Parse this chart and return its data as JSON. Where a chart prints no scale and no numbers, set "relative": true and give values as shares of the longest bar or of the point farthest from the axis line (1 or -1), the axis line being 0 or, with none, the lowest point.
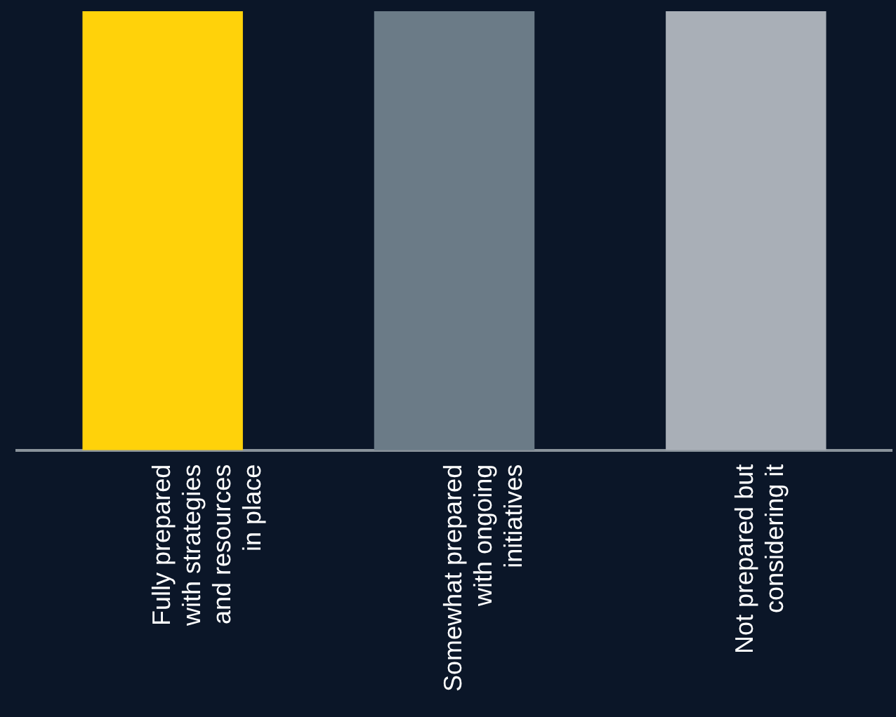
{
  "chart_data": {
    "type": "bar",
    "relative": true,
    "categories": [
      "Fully prepared with strategies and resources in place",
      "Somewhat prepared with ongoing initiatives",
      "Not prepared but considering it"
    ],
    "values": [
      1,
      1,
      1
    ],
    "colors": [
      "#ffd20a",
      "#6b7b87",
      "#a9afb7"
    ]
  }
}
